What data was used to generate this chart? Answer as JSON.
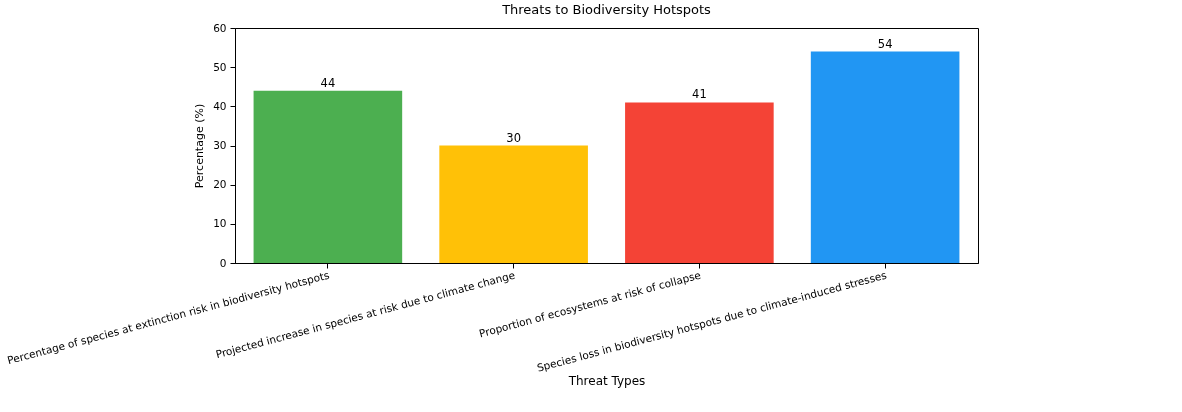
{
  "chart_data": {
    "type": "bar",
    "title": "Threats to Biodiversity Hotspots",
    "xlabel": "Threat Types",
    "ylabel": "Percentage (%)",
    "categories": [
      "Percentage of species at extinction risk in biodiversity hotspots",
      "Projected increase in species at risk due to climate change",
      "Proportion of ecosystems at risk of collapse",
      "Species loss in biodiversity hotspots due to climate-induced stresses"
    ],
    "values": [
      44,
      30,
      41,
      54
    ],
    "colors": [
      "#4caf50",
      "#ffc107",
      "#f44336",
      "#2196f3"
    ],
    "ylim": [
      0,
      60
    ],
    "yticks": [
      0,
      10,
      20,
      30,
      40,
      50,
      60
    ],
    "data_labels": true,
    "grid": false
  }
}
